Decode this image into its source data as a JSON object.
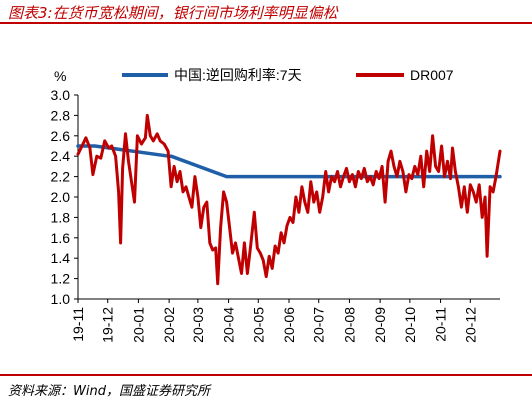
{
  "header": {
    "title": "图表3:在货币宽松期间，银行间市场利率明显偏松"
  },
  "footer": {
    "source": "资料来源：Wind，国盛证券研究所"
  },
  "chart_data": {
    "type": "line",
    "ylabel": "%",
    "ylim": [
      1.0,
      3.0
    ],
    "yticks": [
      "3.0",
      "2.8",
      "2.6",
      "2.4",
      "2.2",
      "2.0",
      "1.8",
      "1.6",
      "1.4",
      "1.2",
      "1.0"
    ],
    "xticks": [
      "19-11",
      "19-12",
      "20-01",
      "20-02",
      "20-03",
      "20-04",
      "20-05",
      "20-06",
      "20-07",
      "20-08",
      "20-09",
      "20-10",
      "20-11",
      "20-12"
    ],
    "x_start": "2019-11-01",
    "x_end": "2020-12-31",
    "legend_position": "top",
    "grid": false,
    "colors": {
      "reverse_repo": "#1f5fa8",
      "dr007": "#c00000",
      "title": "#c00000"
    },
    "series": [
      {
        "name": "中国:逆回购利率:7天",
        "type": "step",
        "points": [
          [
            "2019-11-01",
            2.5
          ],
          [
            "2019-11-18",
            2.5
          ],
          [
            "2019-11-18",
            2.5
          ],
          [
            "2020-02-01",
            2.4
          ],
          [
            "2020-02-03",
            2.4
          ],
          [
            "2020-03-30",
            2.2
          ],
          [
            "2020-12-31",
            2.2
          ]
        ]
      },
      {
        "name": "DR007",
        "type": "line",
        "points": [
          [
            "2019-11-01",
            2.42
          ],
          [
            "2019-11-05",
            2.5
          ],
          [
            "2019-11-09",
            2.58
          ],
          [
            "2019-11-13",
            2.48
          ],
          [
            "2019-11-16",
            2.22
          ],
          [
            "2019-11-20",
            2.4
          ],
          [
            "2019-11-24",
            2.38
          ],
          [
            "2019-11-28",
            2.55
          ],
          [
            "2019-12-02",
            2.48
          ],
          [
            "2019-12-05",
            2.5
          ],
          [
            "2019-12-09",
            2.4
          ],
          [
            "2019-12-12",
            2.05
          ],
          [
            "2019-12-14",
            1.55
          ],
          [
            "2019-12-16",
            2.28
          ],
          [
            "2019-12-19",
            2.62
          ],
          [
            "2019-12-22",
            2.35
          ],
          [
            "2019-12-25",
            2.15
          ],
          [
            "2019-12-28",
            1.95
          ],
          [
            "2019-12-31",
            2.6
          ],
          [
            "2020-01-04",
            2.52
          ],
          [
            "2020-01-08",
            2.58
          ],
          [
            "2020-01-10",
            2.8
          ],
          [
            "2020-01-13",
            2.6
          ],
          [
            "2020-01-16",
            2.55
          ],
          [
            "2020-01-20",
            2.62
          ],
          [
            "2020-01-23",
            2.55
          ],
          [
            "2020-01-27",
            2.52
          ],
          [
            "2020-01-31",
            2.45
          ],
          [
            "2020-02-03",
            2.1
          ],
          [
            "2020-02-06",
            2.3
          ],
          [
            "2020-02-09",
            2.15
          ],
          [
            "2020-02-12",
            2.25
          ],
          [
            "2020-02-15",
            2.05
          ],
          [
            "2020-02-18",
            2.1
          ],
          [
            "2020-02-21",
            2.0
          ],
          [
            "2020-02-24",
            1.9
          ],
          [
            "2020-02-27",
            2.2
          ],
          [
            "2020-03-01",
            2.0
          ],
          [
            "2020-03-04",
            1.7
          ],
          [
            "2020-03-07",
            1.9
          ],
          [
            "2020-03-10",
            1.95
          ],
          [
            "2020-03-13",
            1.55
          ],
          [
            "2020-03-16",
            1.48
          ],
          [
            "2020-03-19",
            1.5
          ],
          [
            "2020-03-21",
            1.15
          ],
          [
            "2020-03-24",
            1.7
          ],
          [
            "2020-03-27",
            2.05
          ],
          [
            "2020-03-30",
            1.95
          ],
          [
            "2020-04-02",
            1.7
          ],
          [
            "2020-04-05",
            1.45
          ],
          [
            "2020-04-08",
            1.55
          ],
          [
            "2020-04-11",
            1.4
          ],
          [
            "2020-04-14",
            1.25
          ],
          [
            "2020-04-17",
            1.55
          ],
          [
            "2020-04-20",
            1.25
          ],
          [
            "2020-04-23",
            1.5
          ],
          [
            "2020-04-27",
            1.85
          ],
          [
            "2020-04-30",
            1.5
          ],
          [
            "2020-05-03",
            1.45
          ],
          [
            "2020-05-06",
            1.38
          ],
          [
            "2020-05-09",
            1.22
          ],
          [
            "2020-05-12",
            1.42
          ],
          [
            "2020-05-15",
            1.3
          ],
          [
            "2020-05-18",
            1.52
          ],
          [
            "2020-05-21",
            1.45
          ],
          [
            "2020-05-24",
            1.65
          ],
          [
            "2020-05-27",
            1.55
          ],
          [
            "2020-05-30",
            1.72
          ],
          [
            "2020-06-02",
            1.8
          ],
          [
            "2020-06-05",
            1.75
          ],
          [
            "2020-06-08",
            2.0
          ],
          [
            "2020-06-11",
            1.85
          ],
          [
            "2020-06-14",
            2.1
          ],
          [
            "2020-06-17",
            1.95
          ],
          [
            "2020-06-20",
            1.85
          ],
          [
            "2020-06-23",
            2.15
          ],
          [
            "2020-06-26",
            1.95
          ],
          [
            "2020-06-29",
            2.05
          ],
          [
            "2020-07-02",
            1.85
          ],
          [
            "2020-07-05",
            2.0
          ],
          [
            "2020-07-08",
            2.25
          ],
          [
            "2020-07-11",
            2.05
          ],
          [
            "2020-07-14",
            2.2
          ],
          [
            "2020-07-17",
            2.15
          ],
          [
            "2020-07-20",
            2.25
          ],
          [
            "2020-07-23",
            2.1
          ],
          [
            "2020-07-26",
            2.2
          ],
          [
            "2020-07-29",
            2.28
          ],
          [
            "2020-08-01",
            2.15
          ],
          [
            "2020-08-04",
            2.22
          ],
          [
            "2020-08-07",
            2.1
          ],
          [
            "2020-08-10",
            2.25
          ],
          [
            "2020-08-13",
            2.18
          ],
          [
            "2020-08-16",
            2.28
          ],
          [
            "2020-08-19",
            2.15
          ],
          [
            "2020-08-22",
            2.2
          ],
          [
            "2020-08-25",
            2.12
          ],
          [
            "2020-08-28",
            2.25
          ],
          [
            "2020-08-31",
            2.18
          ],
          [
            "2020-09-03",
            2.3
          ],
          [
            "2020-09-06",
            1.95
          ],
          [
            "2020-09-09",
            2.35
          ],
          [
            "2020-09-12",
            2.45
          ],
          [
            "2020-09-15",
            2.3
          ],
          [
            "2020-09-18",
            2.2
          ],
          [
            "2020-09-21",
            2.35
          ],
          [
            "2020-09-24",
            2.25
          ],
          [
            "2020-09-27",
            2.05
          ],
          [
            "2020-09-30",
            2.22
          ],
          [
            "2020-10-03",
            2.18
          ],
          [
            "2020-10-06",
            2.3
          ],
          [
            "2020-10-09",
            2.22
          ],
          [
            "2020-10-12",
            2.4
          ],
          [
            "2020-10-15",
            2.1
          ],
          [
            "2020-10-18",
            2.45
          ],
          [
            "2020-10-21",
            2.25
          ],
          [
            "2020-10-24",
            2.6
          ],
          [
            "2020-10-27",
            2.3
          ],
          [
            "2020-10-30",
            2.25
          ],
          [
            "2020-11-02",
            2.5
          ],
          [
            "2020-11-05",
            2.2
          ],
          [
            "2020-11-08",
            2.35
          ],
          [
            "2020-11-11",
            2.18
          ],
          [
            "2020-11-13",
            2.48
          ],
          [
            "2020-11-16",
            2.25
          ],
          [
            "2020-11-19",
            2.1
          ],
          [
            "2020-11-22",
            1.9
          ],
          [
            "2020-11-25",
            2.1
          ],
          [
            "2020-11-28",
            1.85
          ],
          [
            "2020-12-01",
            2.12
          ],
          [
            "2020-12-04",
            2.05
          ],
          [
            "2020-12-07",
            1.95
          ],
          [
            "2020-12-10",
            2.12
          ],
          [
            "2020-12-13",
            1.8
          ],
          [
            "2020-12-16",
            2.0
          ],
          [
            "2020-12-18",
            1.42
          ],
          [
            "2020-12-21",
            2.1
          ],
          [
            "2020-12-24",
            2.05
          ],
          [
            "2020-12-27",
            2.2
          ],
          [
            "2020-12-31",
            2.45
          ]
        ]
      }
    ]
  }
}
